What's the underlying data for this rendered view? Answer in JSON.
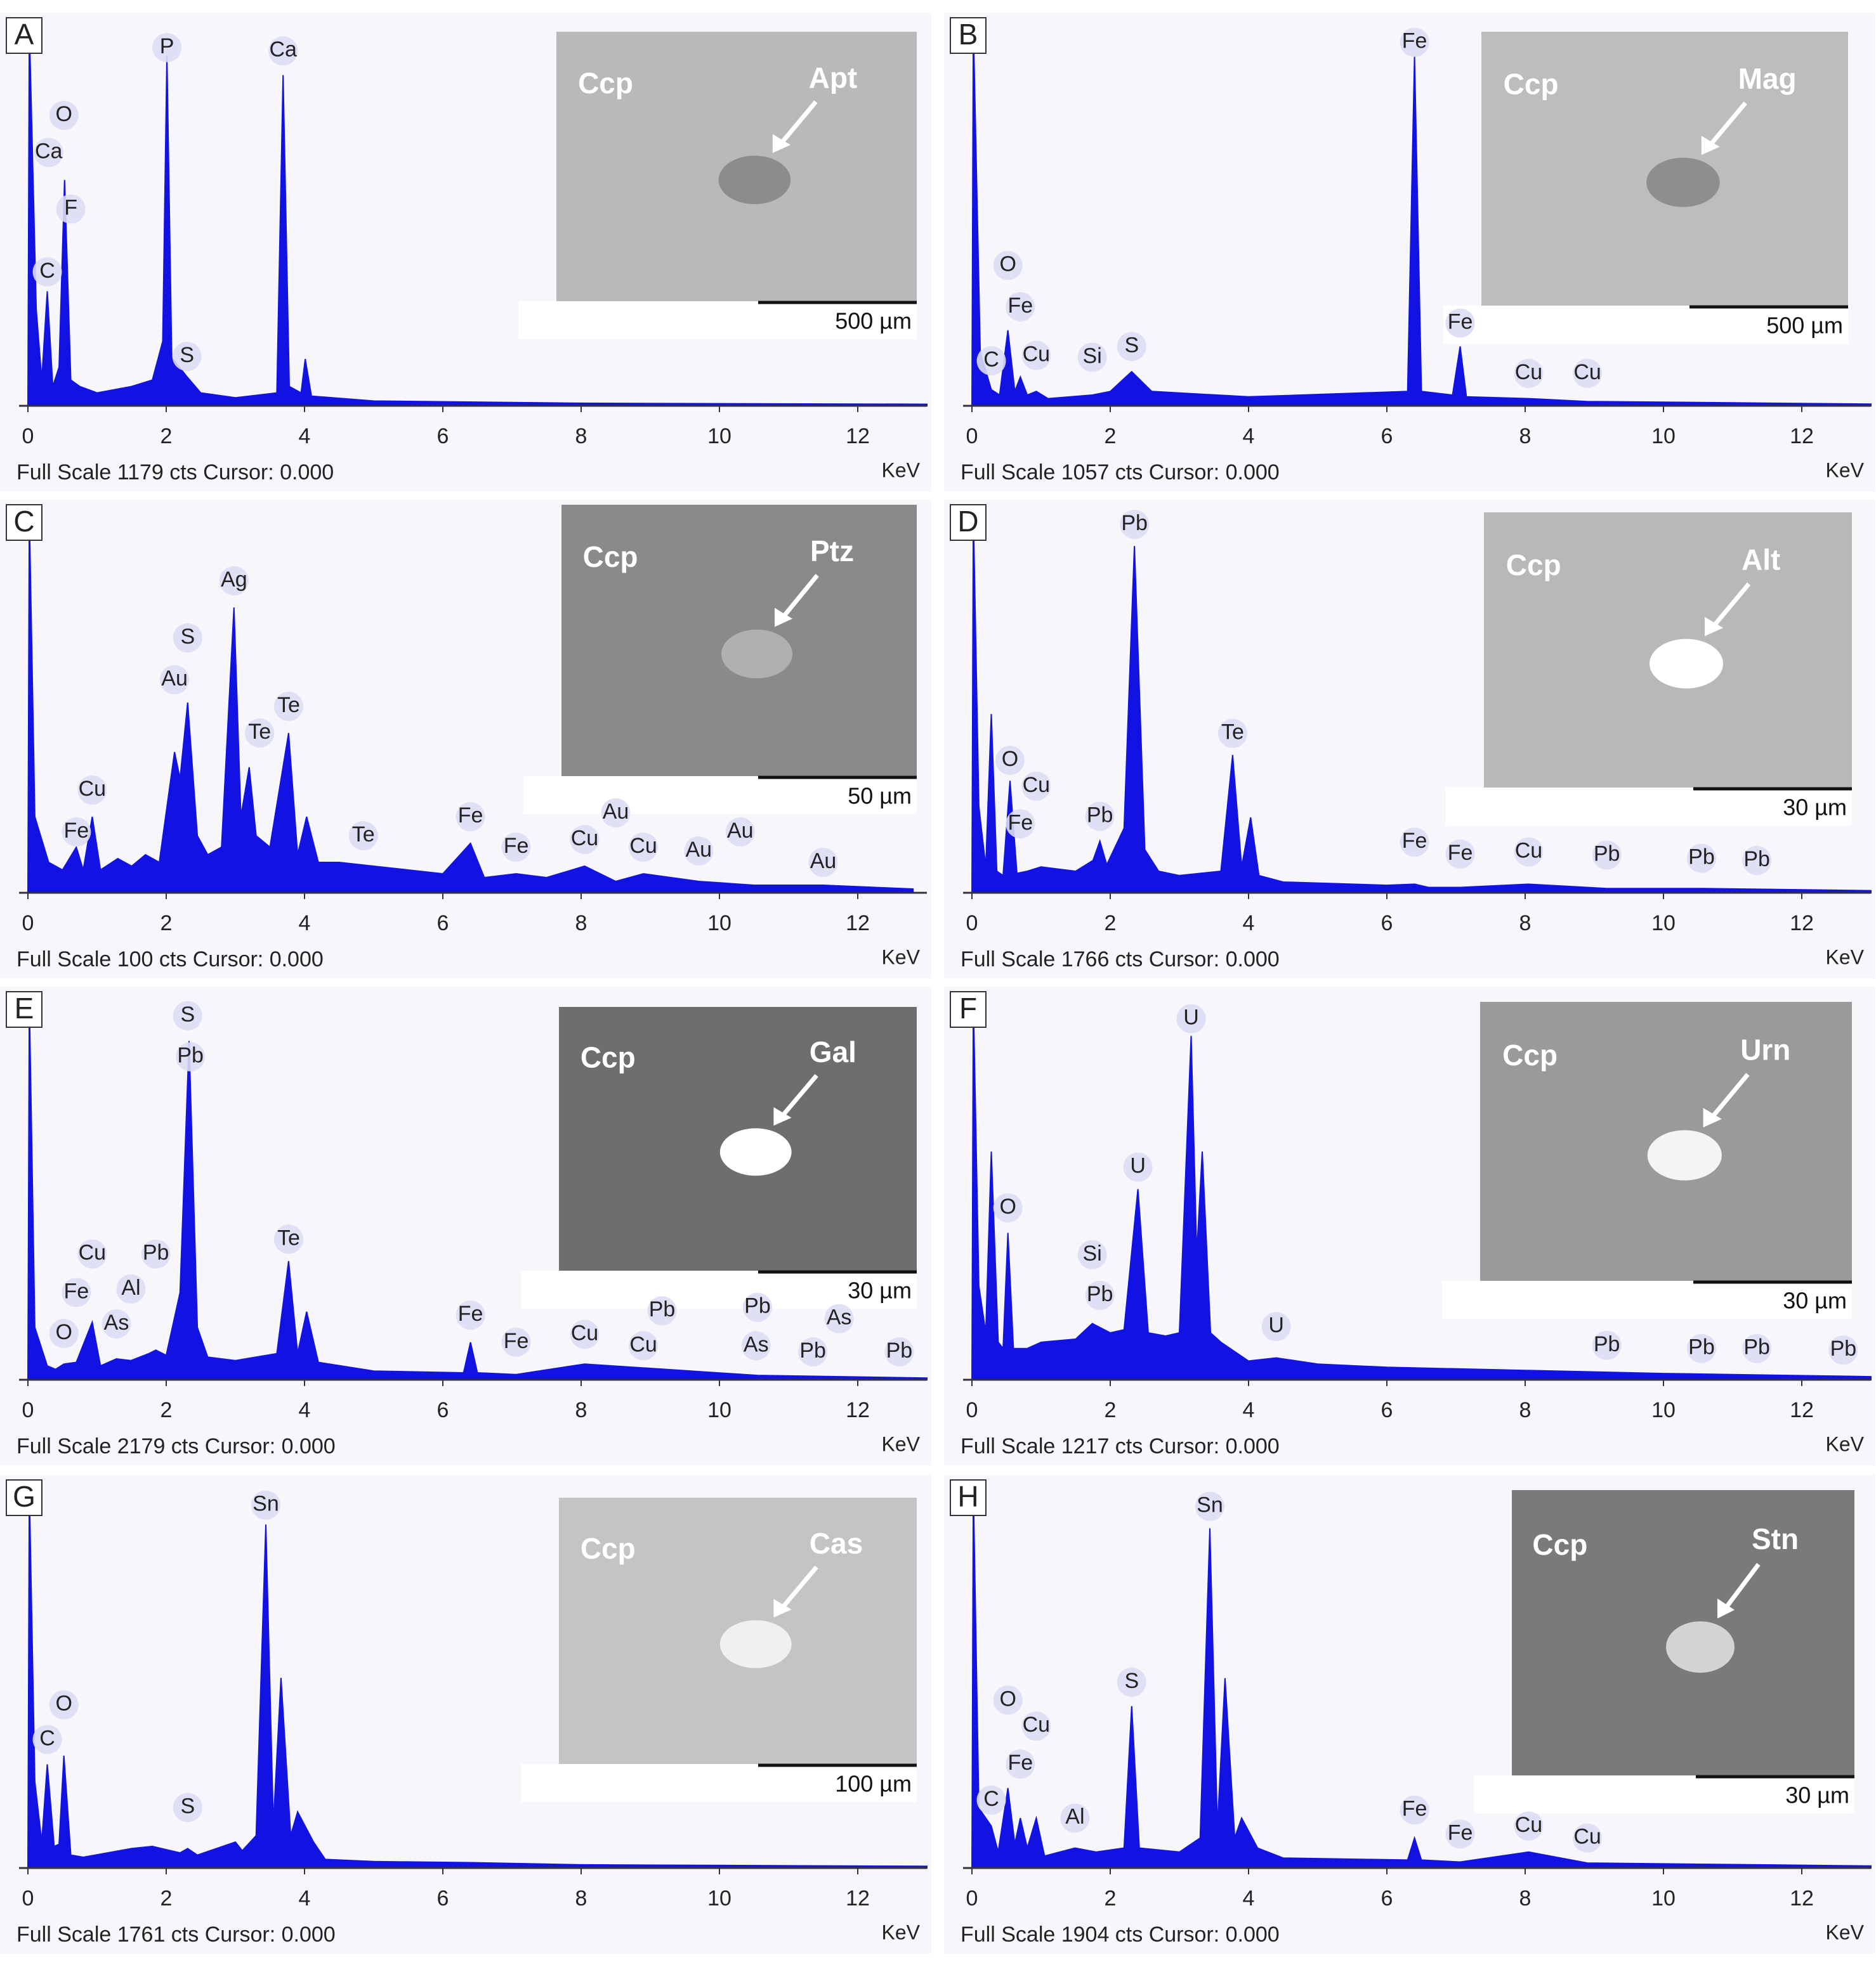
{
  "chart_data": [
    {
      "type": "area",
      "panel": "A",
      "color": "#1212e2",
      "xlim": [
        0,
        13
      ],
      "ylim": [
        0,
        1179
      ],
      "xticks": [
        0,
        2,
        4,
        6,
        8,
        10,
        12
      ],
      "xlabel": "KeV",
      "footer": "Full Scale 1179 cts Cursor: 0.000",
      "x": [
        0,
        0.02,
        0.12,
        0.2,
        0.28,
        0.36,
        0.45,
        0.53,
        0.62,
        0.75,
        1.0,
        1.5,
        1.8,
        1.95,
        2.01,
        2.08,
        2.3,
        2.5,
        3.0,
        3.6,
        3.69,
        3.78,
        3.95,
        4.01,
        4.1,
        5,
        8,
        13
      ],
      "values": [
        0,
        1179,
        300,
        80,
        355,
        60,
        120,
        700,
        80,
        60,
        40,
        60,
        80,
        200,
        1085,
        150,
        90,
        40,
        25,
        40,
        1025,
        60,
        40,
        145,
        30,
        15,
        8,
        5
      ],
      "annotations": [
        {
          "text": "P",
          "x": 2.01,
          "y": 1110
        },
        {
          "text": "Ca",
          "x": 3.69,
          "y": 1100
        },
        {
          "text": "O",
          "x": 0.52,
          "y": 900
        },
        {
          "text": "Ca",
          "x": 0.3,
          "y": 785
        },
        {
          "text": "F",
          "x": 0.62,
          "y": 610
        },
        {
          "text": "C",
          "x": 0.28,
          "y": 415
        },
        {
          "text": "S",
          "x": 2.3,
          "y": 153
        }
      ],
      "inset": {
        "labels": [
          "Ccp",
          "Apt"
        ],
        "scale": "500 µm"
      }
    },
    {
      "type": "area",
      "panel": "B",
      "color": "#1212e2",
      "xlim": [
        0,
        13
      ],
      "ylim": [
        0,
        1057
      ],
      "xticks": [
        0,
        2,
        4,
        6,
        8,
        10,
        12
      ],
      "xlabel": "KeV",
      "footer": "Full Scale 1057 cts Cursor: 0.000",
      "x": [
        0,
        0.02,
        0.12,
        0.28,
        0.4,
        0.52,
        0.62,
        0.7,
        0.8,
        0.93,
        1.1,
        1.74,
        2.0,
        2.31,
        2.6,
        4,
        6.3,
        6.4,
        6.5,
        6.95,
        7.06,
        7.15,
        8.05,
        8.9,
        13
      ],
      "values": [
        0,
        1057,
        150,
        45,
        30,
        210,
        40,
        80,
        30,
        40,
        20,
        30,
        40,
        95,
        40,
        25,
        40,
        970,
        40,
        30,
        165,
        25,
        20,
        12,
        5
      ],
      "annotations": [
        {
          "text": "Fe",
          "x": 6.4,
          "y": 1010
        },
        {
          "text": "Fe",
          "x": 7.06,
          "y": 230
        },
        {
          "text": "O",
          "x": 0.52,
          "y": 390
        },
        {
          "text": "Fe",
          "x": 0.7,
          "y": 275
        },
        {
          "text": "Cu",
          "x": 0.93,
          "y": 140
        },
        {
          "text": "C",
          "x": 0.28,
          "y": 125
        },
        {
          "text": "Si",
          "x": 1.74,
          "y": 135
        },
        {
          "text": "S",
          "x": 2.31,
          "y": 165
        },
        {
          "text": "Cu",
          "x": 8.05,
          "y": 90
        },
        {
          "text": "Cu",
          "x": 8.9,
          "y": 90
        }
      ],
      "inset": {
        "labels": [
          "Ccp",
          "Mag"
        ],
        "scale": "500 µm"
      }
    },
    {
      "type": "area",
      "panel": "C",
      "color": "#1212e2",
      "xlim": [
        0,
        13
      ],
      "ylim": [
        0,
        100
      ],
      "xticks": [
        0,
        2,
        4,
        6,
        8,
        10,
        12
      ],
      "xlabel": "KeV",
      "footer": "Full Scale 100 cts Cursor: 0.000",
      "x": [
        0,
        0.02,
        0.1,
        0.3,
        0.5,
        0.7,
        0.8,
        0.93,
        1.05,
        1.3,
        1.5,
        1.7,
        1.9,
        2.12,
        2.2,
        2.31,
        2.45,
        2.6,
        2.8,
        2.98,
        3.08,
        3.2,
        3.3,
        3.5,
        3.77,
        3.9,
        4.03,
        4.2,
        4.5,
        5,
        5.5,
        6,
        6.4,
        6.6,
        7.06,
        7.5,
        8.05,
        8.5,
        8.9,
        9.7,
        10.5,
        11.5,
        12.8
      ],
      "values": [
        0,
        100,
        20,
        8,
        6,
        12,
        6,
        20,
        6,
        9,
        7,
        10,
        8,
        37,
        30,
        50,
        15,
        10,
        12,
        75,
        20,
        33,
        15,
        12,
        42,
        10,
        20,
        8,
        8,
        7,
        6,
        5,
        13,
        4,
        5,
        4,
        7,
        3,
        5,
        3,
        2,
        2,
        1
      ],
      "annotations": [
        {
          "text": "Ag",
          "x": 2.98,
          "y": 82
        },
        {
          "text": "S",
          "x": 2.31,
          "y": 67
        },
        {
          "text": "Au",
          "x": 2.12,
          "y": 56
        },
        {
          "text": "Te",
          "x": 3.77,
          "y": 49
        },
        {
          "text": "Te",
          "x": 3.35,
          "y": 42
        },
        {
          "text": "Cu",
          "x": 0.93,
          "y": 27
        },
        {
          "text": "Fe",
          "x": 0.7,
          "y": 16
        },
        {
          "text": "Te",
          "x": 4.85,
          "y": 15
        },
        {
          "text": "Fe",
          "x": 6.4,
          "y": 20
        },
        {
          "text": "Fe",
          "x": 7.06,
          "y": 12
        },
        {
          "text": "Cu",
          "x": 8.05,
          "y": 14
        },
        {
          "text": "Au",
          "x": 8.5,
          "y": 21
        },
        {
          "text": "Cu",
          "x": 8.9,
          "y": 12
        },
        {
          "text": "Au",
          "x": 9.7,
          "y": 11
        },
        {
          "text": "Au",
          "x": 10.3,
          "y": 16
        },
        {
          "text": "Au",
          "x": 11.5,
          "y": 8
        }
      ],
      "inset": {
        "labels": [
          "Ccp",
          "Ptz"
        ],
        "scale": "50 µm"
      }
    },
    {
      "type": "area",
      "panel": "D",
      "color": "#1212e2",
      "xlim": [
        0,
        13
      ],
      "ylim": [
        0,
        1766
      ],
      "xticks": [
        0,
        2,
        4,
        6,
        8,
        10,
        12
      ],
      "xlabel": "KeV",
      "footer": "Full Scale 1766 cts Cursor: 0.000",
      "x": [
        0,
        0.02,
        0.1,
        0.2,
        0.28,
        0.36,
        0.45,
        0.55,
        0.65,
        0.8,
        1.0,
        1.5,
        1.75,
        1.85,
        1.95,
        2.2,
        2.35,
        2.5,
        2.7,
        3.0,
        3.6,
        3.77,
        3.9,
        4.03,
        4.15,
        4.5,
        6,
        6.4,
        6.6,
        7.06,
        8.05,
        9.18,
        10.55,
        13
      ],
      "values": [
        0,
        1766,
        400,
        120,
        830,
        100,
        80,
        520,
        90,
        100,
        120,
        100,
        150,
        240,
        130,
        300,
        1610,
        200,
        100,
        80,
        100,
        640,
        120,
        350,
        80,
        50,
        35,
        40,
        25,
        25,
        40,
        20,
        20,
        10
      ],
      "annotations": [
        {
          "text": "Pb",
          "x": 2.35,
          "y": 1710
        },
        {
          "text": "Te",
          "x": 3.77,
          "y": 740
        },
        {
          "text": "O",
          "x": 0.55,
          "y": 615
        },
        {
          "text": "Cu",
          "x": 0.93,
          "y": 495
        },
        {
          "text": "Fe",
          "x": 0.7,
          "y": 320
        },
        {
          "text": "Pb",
          "x": 1.85,
          "y": 355
        },
        {
          "text": "Fe",
          "x": 6.4,
          "y": 235
        },
        {
          "text": "Fe",
          "x": 7.06,
          "y": 180
        },
        {
          "text": "Cu",
          "x": 8.05,
          "y": 190
        },
        {
          "text": "Pb",
          "x": 9.18,
          "y": 175
        },
        {
          "text": "Pb",
          "x": 10.55,
          "y": 160
        },
        {
          "text": "Pb",
          "x": 11.35,
          "y": 150
        }
      ],
      "inset": {
        "labels": [
          "Ccp",
          "Alt"
        ],
        "scale": "30 µm"
      }
    },
    {
      "type": "area",
      "panel": "E",
      "color": "#1212e2",
      "xlim": [
        0,
        13
      ],
      "ylim": [
        0,
        2179
      ],
      "xticks": [
        0,
        2,
        4,
        6,
        8,
        10,
        12
      ],
      "xlabel": "KeV",
      "footer": "Full Scale 2179 cts Cursor: 0.000",
      "x": [
        0,
        0.02,
        0.1,
        0.28,
        0.4,
        0.52,
        0.7,
        0.93,
        1.05,
        1.28,
        1.49,
        1.75,
        1.85,
        2.0,
        2.2,
        2.33,
        2.45,
        2.6,
        3.0,
        3.6,
        3.77,
        3.9,
        4.03,
        4.2,
        5,
        6.3,
        6.4,
        6.5,
        7.06,
        8.05,
        10.55,
        13
      ],
      "values": [
        0,
        2179,
        300,
        80,
        60,
        90,
        100,
        330,
        80,
        120,
        110,
        150,
        170,
        140,
        500,
        1940,
        300,
        130,
        110,
        150,
        680,
        150,
        390,
        100,
        50,
        40,
        215,
        40,
        30,
        90,
        25,
        10
      ],
      "annotations": [
        {
          "text": "S",
          "x": 2.31,
          "y": 2085
        },
        {
          "text": "Pb",
          "x": 2.35,
          "y": 1850
        },
        {
          "text": "Te",
          "x": 3.77,
          "y": 805
        },
        {
          "text": "Cu",
          "x": 0.93,
          "y": 720
        },
        {
          "text": "Pb",
          "x": 1.85,
          "y": 720
        },
        {
          "text": "Fe",
          "x": 0.7,
          "y": 500
        },
        {
          "text": "Al",
          "x": 1.49,
          "y": 520
        },
        {
          "text": "O",
          "x": 0.52,
          "y": 265
        },
        {
          "text": "As",
          "x": 1.28,
          "y": 320
        },
        {
          "text": "Fe",
          "x": 6.4,
          "y": 370
        },
        {
          "text": "Fe",
          "x": 7.06,
          "y": 215
        },
        {
          "text": "Cu",
          "x": 8.05,
          "y": 260
        },
        {
          "text": "Cu",
          "x": 8.9,
          "y": 195
        },
        {
          "text": "Pb",
          "x": 9.17,
          "y": 395
        },
        {
          "text": "As",
          "x": 10.53,
          "y": 195
        },
        {
          "text": "Pb",
          "x": 10.55,
          "y": 415
        },
        {
          "text": "Pb",
          "x": 11.35,
          "y": 160
        },
        {
          "text": "As",
          "x": 11.73,
          "y": 350
        },
        {
          "text": "Pb",
          "x": 12.6,
          "y": 160
        }
      ],
      "inset": {
        "labels": [
          "Ccp",
          "Gal"
        ],
        "scale": "30 µm"
      }
    },
    {
      "type": "area",
      "panel": "F",
      "color": "#1212e2",
      "xlim": [
        0,
        13
      ],
      "ylim": [
        0,
        1217
      ],
      "xticks": [
        0,
        2,
        4,
        6,
        8,
        10,
        12
      ],
      "xlabel": "KeV",
      "footer": "Full Scale 1217 cts Cursor: 0.000",
      "x": [
        0,
        0.02,
        0.1,
        0.2,
        0.28,
        0.38,
        0.45,
        0.52,
        0.6,
        0.8,
        1.0,
        1.5,
        1.74,
        2.0,
        2.2,
        2.4,
        2.55,
        2.8,
        3.0,
        3.17,
        3.25,
        3.33,
        3.45,
        3.6,
        4.0,
        4.4,
        5,
        6,
        8,
        10,
        13
      ],
      "values": [
        0,
        1217,
        300,
        150,
        730,
        120,
        100,
        470,
        100,
        100,
        120,
        130,
        180,
        150,
        160,
        610,
        150,
        140,
        150,
        1100,
        400,
        730,
        150,
        120,
        60,
        70,
        50,
        40,
        30,
        20,
        10
      ],
      "annotations": [
        {
          "text": "U",
          "x": 3.17,
          "y": 1155
        },
        {
          "text": "U",
          "x": 2.4,
          "y": 680
        },
        {
          "text": "O",
          "x": 0.52,
          "y": 550
        },
        {
          "text": "Si",
          "x": 1.74,
          "y": 400
        },
        {
          "text": "Pb",
          "x": 1.85,
          "y": 270
        },
        {
          "text": "U",
          "x": 4.4,
          "y": 170
        },
        {
          "text": "Pb",
          "x": 9.18,
          "y": 110
        },
        {
          "text": "Pb",
          "x": 10.55,
          "y": 100
        },
        {
          "text": "Pb",
          "x": 11.35,
          "y": 100
        },
        {
          "text": "Pb",
          "x": 12.6,
          "y": 95
        }
      ],
      "inset": {
        "labels": [
          "Ccp",
          "Urn"
        ],
        "scale": "30 µm"
      }
    },
    {
      "type": "area",
      "panel": "G",
      "color": "#1212e2",
      "xlim": [
        0,
        13
      ],
      "ylim": [
        0,
        1761
      ],
      "xticks": [
        0,
        2,
        4,
        6,
        8,
        10,
        12
      ],
      "xlabel": "KeV",
      "footer": "Full Scale 1761 cts Cursor: 0.000",
      "x": [
        0,
        0.02,
        0.1,
        0.2,
        0.28,
        0.38,
        0.45,
        0.52,
        0.62,
        0.8,
        1.5,
        1.8,
        2.2,
        2.31,
        2.45,
        3.0,
        3.1,
        3.3,
        3.44,
        3.55,
        3.66,
        3.8,
        3.9,
        4.13,
        4.3,
        5,
        6.4,
        8,
        13
      ],
      "values": [
        0,
        1761,
        400,
        120,
        480,
        100,
        110,
        520,
        60,
        50,
        90,
        100,
        70,
        90,
        60,
        120,
        80,
        150,
        1590,
        200,
        880,
        150,
        260,
        120,
        40,
        30,
        25,
        15,
        8
      ],
      "annotations": [
        {
          "text": "Sn",
          "x": 3.44,
          "y": 1680
        },
        {
          "text": "O",
          "x": 0.52,
          "y": 755
        },
        {
          "text": "C",
          "x": 0.28,
          "y": 595
        },
        {
          "text": "S",
          "x": 2.31,
          "y": 280
        }
      ],
      "inset": {
        "labels": [
          "Ccp",
          "Cas"
        ],
        "scale": "100 µm"
      }
    },
    {
      "type": "area",
      "panel": "H",
      "color": "#1212e2",
      "xlim": [
        0,
        13
      ],
      "ylim": [
        0,
        1904
      ],
      "xticks": [
        0,
        2,
        4,
        6,
        8,
        10,
        12
      ],
      "xlabel": "KeV",
      "footer": "Full Scale 1904 cts Cursor: 0.000",
      "x": [
        0,
        0.02,
        0.1,
        0.28,
        0.38,
        0.52,
        0.62,
        0.7,
        0.8,
        0.93,
        1.05,
        1.49,
        1.8,
        2.2,
        2.31,
        2.42,
        3.0,
        3.3,
        3.44,
        3.55,
        3.66,
        3.8,
        3.9,
        4.13,
        4.5,
        6.3,
        6.4,
        6.5,
        7.06,
        8.05,
        8.9,
        13
      ],
      "values": [
        0,
        1904,
        300,
        210,
        80,
        400,
        120,
        250,
        100,
        250,
        60,
        100,
        80,
        100,
        810,
        100,
        80,
        150,
        1700,
        200,
        950,
        150,
        250,
        100,
        50,
        40,
        150,
        40,
        30,
        80,
        25,
        10
      ],
      "annotations": [
        {
          "text": "Sn",
          "x": 3.44,
          "y": 1810
        },
        {
          "text": "S",
          "x": 2.31,
          "y": 930
        },
        {
          "text": "O",
          "x": 0.52,
          "y": 840
        },
        {
          "text": "Cu",
          "x": 0.93,
          "y": 710
        },
        {
          "text": "Fe",
          "x": 0.7,
          "y": 520
        },
        {
          "text": "C",
          "x": 0.28,
          "y": 340
        },
        {
          "text": "Al",
          "x": 1.49,
          "y": 250
        },
        {
          "text": "Fe",
          "x": 6.4,
          "y": 290
        },
        {
          "text": "Fe",
          "x": 7.06,
          "y": 170
        },
        {
          "text": "Cu",
          "x": 8.05,
          "y": 210
        },
        {
          "text": "Cu",
          "x": 8.9,
          "y": 150
        }
      ],
      "inset": {
        "labels": [
          "Ccp",
          "Stn"
        ],
        "scale": "30 µm"
      }
    }
  ]
}
